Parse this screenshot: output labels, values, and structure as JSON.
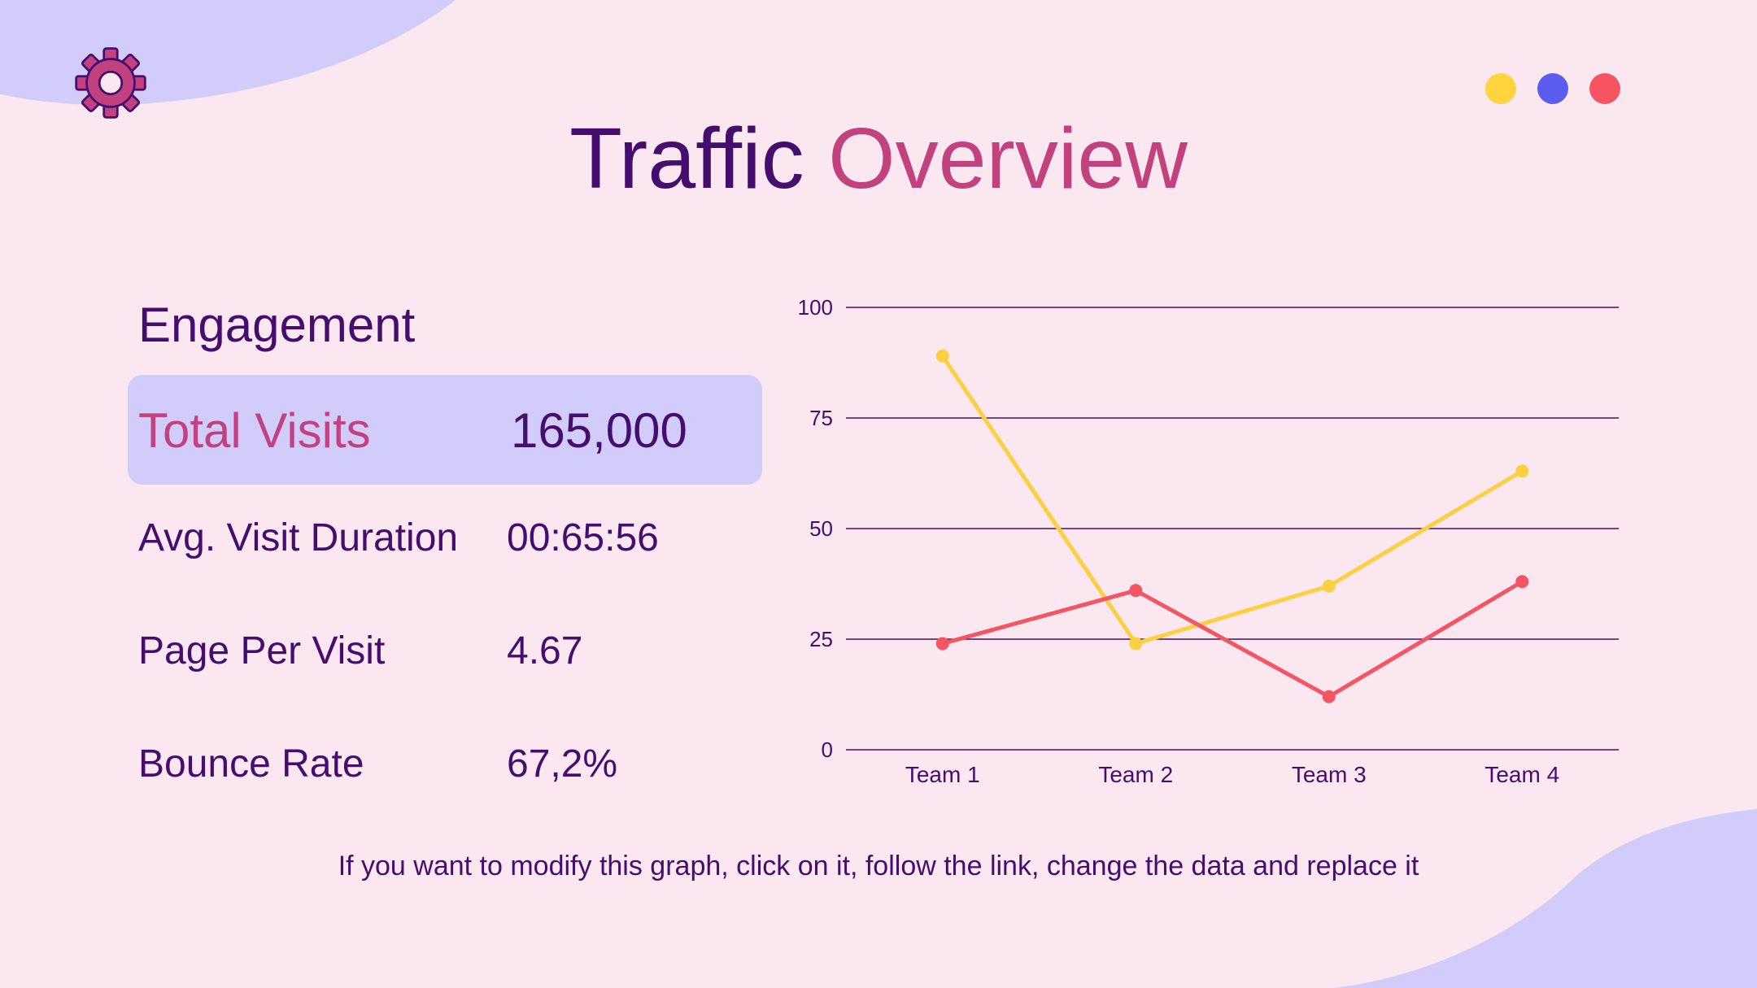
{
  "slide": {
    "title_part1": "Traffic",
    "title_part2": "Overview",
    "footnote": "If you want to modify this graph, click on it, follow the link, change the data and replace it",
    "colors": {
      "background": "#fbe7f0",
      "blob": "#d2ccfb",
      "dark_purple": "#450d6e",
      "pink": "#c2427f"
    },
    "decor": {
      "gear_icon": "gear-icon",
      "dots": [
        {
          "color": "#ffd43f"
        },
        {
          "color": "#5c5cf0"
        },
        {
          "color": "#f75462"
        }
      ]
    }
  },
  "engagement": {
    "heading": "Engagement",
    "metrics": [
      {
        "label": "Total Visits",
        "value": "165,000"
      },
      {
        "label": "Avg. Visit Duration",
        "value": "00:65:56"
      },
      {
        "label": "Page Per Visit",
        "value": "4.67"
      },
      {
        "label": "Bounce Rate",
        "value": "67,2%"
      }
    ]
  },
  "chart_data": {
    "type": "line",
    "categories": [
      "Team 1",
      "Team 2",
      "Team 3",
      "Team 4"
    ],
    "yticks": [
      "0",
      "25",
      "50",
      "75",
      "100"
    ],
    "ylim": [
      0,
      100
    ],
    "grid": true,
    "series": [
      {
        "color": "#fdd042",
        "values": [
          89,
          24,
          37,
          63
        ]
      },
      {
        "color": "#f45563",
        "values": [
          24,
          36,
          12,
          38
        ]
      }
    ]
  }
}
